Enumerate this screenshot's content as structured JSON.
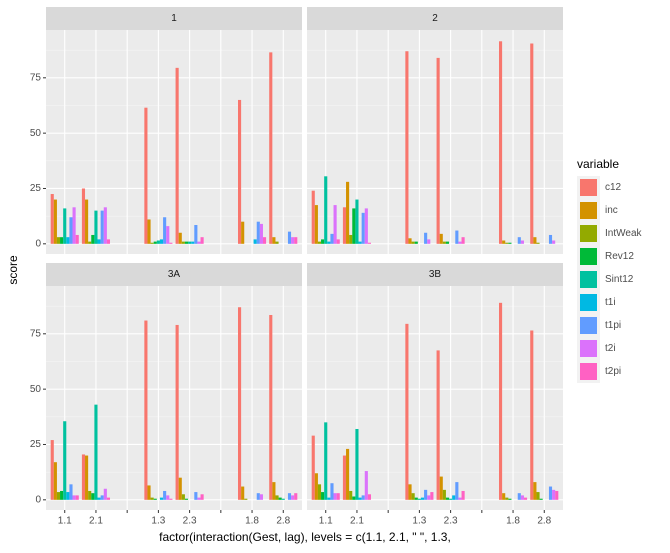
{
  "chart_data": {
    "type": "bar",
    "xlabel": "factor(interaction(Gest, lag), levels = c(1.1, 2.1, \" \", 1.3,",
    "ylabel": "score",
    "legend_title": "variable",
    "categories": [
      "1.1",
      "2.1",
      null,
      "1.3",
      "2.3",
      null,
      "1.8",
      "2.8"
    ],
    "ylim": [
      -4.6,
      96.6
    ],
    "yticks": [
      0,
      25,
      50,
      75
    ],
    "grid": true,
    "series": [
      {
        "name": "c12",
        "color": "#F8766D"
      },
      {
        "name": "inc",
        "color": "#D39200"
      },
      {
        "name": "IntWeak",
        "color": "#93AA00"
      },
      {
        "name": "Rev12",
        "color": "#00BA38"
      },
      {
        "name": "Sint12",
        "color": "#00C19F"
      },
      {
        "name": "t1i",
        "color": "#00B9E3"
      },
      {
        "name": "t1pi",
        "color": "#619CFF"
      },
      {
        "name": "t2i",
        "color": "#DB72FB"
      },
      {
        "name": "t2pi",
        "color": "#FF61C3"
      }
    ],
    "facets": [
      {
        "title": "1",
        "values": [
          [
            22.5,
            25,
            null,
            61.5,
            79.5,
            null,
            65,
            86.5
          ],
          [
            20,
            20,
            null,
            11,
            5,
            null,
            10,
            3
          ],
          [
            3,
            1,
            null,
            0.5,
            1,
            null,
            0,
            1
          ],
          [
            3,
            4,
            null,
            1,
            1,
            null,
            0,
            0
          ],
          [
            16,
            15,
            null,
            1.5,
            1,
            null,
            0,
            0
          ],
          [
            3,
            2,
            null,
            2,
            1,
            null,
            2,
            0
          ],
          [
            12,
            15,
            null,
            12,
            8.5,
            null,
            10,
            5.5
          ],
          [
            16.5,
            16.5,
            null,
            8,
            1,
            null,
            9,
            3
          ],
          [
            4,
            2,
            null,
            0.5,
            3,
            null,
            3,
            3
          ]
        ]
      },
      {
        "title": "2",
        "values": [
          [
            24,
            16.5,
            null,
            87,
            84,
            null,
            91.5,
            90.5
          ],
          [
            17.5,
            28,
            null,
            2.5,
            4.5,
            null,
            1.5,
            3
          ],
          [
            1,
            4,
            null,
            1,
            1,
            null,
            0.5,
            0.5
          ],
          [
            2,
            16,
            null,
            1,
            1,
            null,
            0.5,
            0
          ],
          [
            30.5,
            20,
            null,
            0,
            0,
            null,
            0,
            0
          ],
          [
            1,
            1,
            null,
            0,
            0,
            null,
            0,
            0
          ],
          [
            4.5,
            14,
            null,
            5,
            6,
            null,
            3,
            4
          ],
          [
            17.5,
            16,
            null,
            2,
            1,
            null,
            1.5,
            1.5
          ],
          [
            2,
            0.5,
            null,
            0,
            3,
            null,
            0,
            0
          ]
        ]
      },
      {
        "title": "3A",
        "values": [
          [
            27,
            20.5,
            null,
            81,
            79,
            null,
            87,
            83.5
          ],
          [
            17,
            20,
            null,
            6.5,
            10,
            null,
            6,
            8
          ],
          [
            3.5,
            4,
            null,
            1,
            2.5,
            null,
            0.5,
            2
          ],
          [
            4,
            3,
            null,
            0.5,
            0.5,
            null,
            0,
            1
          ],
          [
            35.5,
            43,
            null,
            0,
            0,
            null,
            0,
            0.5
          ],
          [
            3.5,
            1,
            null,
            1,
            0,
            null,
            0,
            0
          ],
          [
            7,
            2,
            null,
            4,
            3.5,
            null,
            3,
            3
          ],
          [
            2,
            5,
            null,
            2,
            1,
            null,
            2.5,
            2
          ],
          [
            2,
            1,
            null,
            0.5,
            2.5,
            null,
            0,
            3
          ]
        ]
      },
      {
        "title": "3B",
        "values": [
          [
            29,
            20,
            null,
            79.5,
            67.5,
            null,
            89,
            76.5
          ],
          [
            12,
            23,
            null,
            7,
            10.5,
            null,
            3,
            8
          ],
          [
            7,
            4,
            null,
            3,
            4.5,
            null,
            1,
            3.5
          ],
          [
            3.5,
            1.5,
            null,
            1,
            1,
            null,
            0.5,
            0.5
          ],
          [
            35,
            32,
            null,
            0.5,
            0.5,
            null,
            0,
            0
          ],
          [
            1,
            1,
            null,
            1,
            2,
            null,
            0,
            0
          ],
          [
            7.5,
            2,
            null,
            4.5,
            8,
            null,
            3,
            6
          ],
          [
            3,
            13,
            null,
            2,
            1,
            null,
            2,
            4.5
          ],
          [
            3,
            2.5,
            null,
            3.5,
            4,
            null,
            1,
            4
          ]
        ]
      }
    ]
  }
}
